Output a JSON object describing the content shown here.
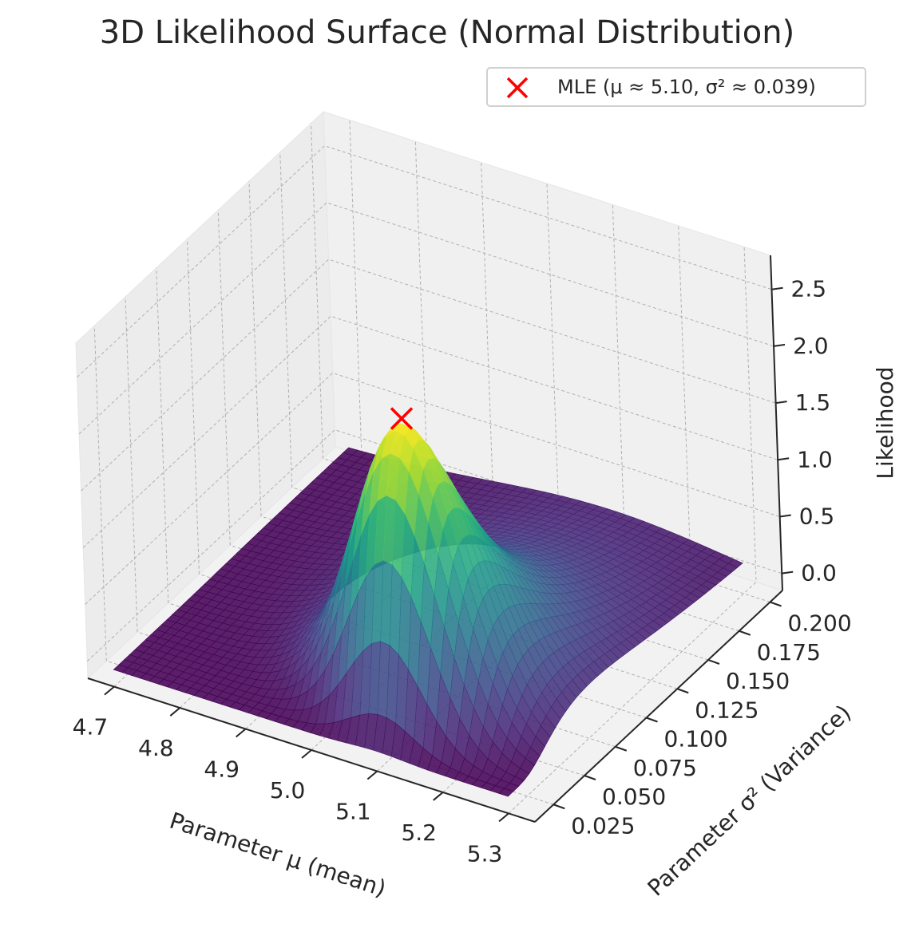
{
  "chart_data": {
    "type": "surface",
    "title": "3D Likelihood Surface (Normal Distribution)",
    "xlabel": "Parameter μ (mean)",
    "ylabel": "Parameter σ² (Variance)",
    "zlabel": "Likelihood",
    "xlim": [
      4.66,
      5.34
    ],
    "ylim": [
      0.01,
      0.21
    ],
    "zlim": [
      -0.15,
      2.8
    ],
    "xticks": [
      "4.7",
      "4.8",
      "4.9",
      "5.0",
      "5.1",
      "5.2",
      "5.3"
    ],
    "xtick_values": [
      4.7,
      4.8,
      4.9,
      5.0,
      5.1,
      5.2,
      5.3
    ],
    "yticks": [
      "0.025",
      "0.050",
      "0.075",
      "0.100",
      "0.125",
      "0.150",
      "0.175",
      "0.200"
    ],
    "ytick_values": [
      0.025,
      0.05,
      0.075,
      0.1,
      0.125,
      0.15,
      0.175,
      0.2
    ],
    "zticks": [
      "0.0",
      "0.5",
      "1.0",
      "1.5",
      "2.0",
      "2.5"
    ],
    "ztick_values": [
      0,
      0.5,
      1.0,
      1.5,
      2.0,
      2.5
    ],
    "surface": {
      "mu_range": [
        4.7,
        5.3
      ],
      "sigma2_range": [
        0.01,
        0.2
      ],
      "peak_mu": 5.1,
      "peak_sigma2": 0.039,
      "peak_value": 2.6,
      "colormap": "viridis"
    },
    "mle_point": {
      "mu": 5.1,
      "sigma2": 0.039,
      "z": 2.6,
      "marker": "x",
      "color": "#ff0000"
    },
    "legend": {
      "label": "MLE (μ ≈ 5.10, σ² ≈ 0.039)",
      "position": "top-right"
    },
    "grid": true
  }
}
